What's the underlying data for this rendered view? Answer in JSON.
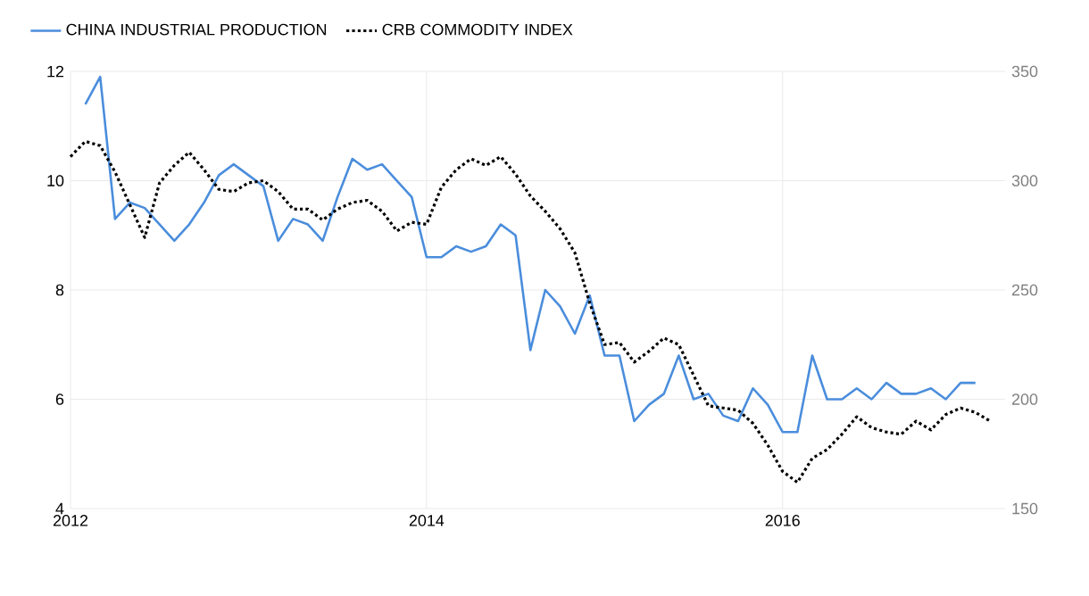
{
  "chart_data": {
    "type": "line",
    "x": [
      "2012-02",
      "2012-03",
      "2012-04",
      "2012-05",
      "2012-06",
      "2012-07",
      "2012-08",
      "2012-09",
      "2012-10",
      "2012-11",
      "2012-12",
      "2013-01",
      "2013-02",
      "2013-03",
      "2013-04",
      "2013-05",
      "2013-06",
      "2013-07",
      "2013-08",
      "2013-09",
      "2013-10",
      "2013-11",
      "2013-12",
      "2014-01",
      "2014-02",
      "2014-03",
      "2014-04",
      "2014-05",
      "2014-06",
      "2014-07",
      "2014-08",
      "2014-09",
      "2014-10",
      "2014-11",
      "2014-12",
      "2015-01",
      "2015-02",
      "2015-03",
      "2015-04",
      "2015-05",
      "2015-06",
      "2015-07",
      "2015-08",
      "2015-09",
      "2015-10",
      "2015-11",
      "2015-12",
      "2016-01",
      "2016-02",
      "2016-03",
      "2016-04",
      "2016-05",
      "2016-06",
      "2016-07",
      "2016-08",
      "2016-09",
      "2016-10",
      "2016-11",
      "2016-12",
      "2017-01",
      "2017-02"
    ],
    "series": [
      {
        "name": "CHINA INDUSTRIAL PRODUCTION",
        "color": "#4a8ddc",
        "line_style": "solid",
        "values": [
          11.4,
          11.9,
          9.3,
          9.6,
          9.5,
          9.2,
          8.9,
          9.2,
          9.6,
          10.1,
          10.3,
          10.1,
          9.9,
          8.9,
          9.3,
          9.2,
          8.9,
          9.7,
          10.4,
          10.2,
          10.3,
          10.0,
          9.7,
          8.6,
          8.6,
          8.8,
          8.7,
          8.8,
          9.2,
          9.0,
          6.9,
          8.0,
          7.7,
          7.2,
          7.9,
          6.8,
          6.8,
          5.6,
          5.9,
          6.1,
          6.8,
          6.0,
          6.1,
          5.7,
          5.6,
          6.2,
          5.9,
          5.4,
          5.4,
          6.8,
          6.0,
          6.0,
          6.2,
          6.0,
          6.3,
          6.1,
          6.1,
          6.2,
          6.0,
          6.3,
          6.3
        ]
      },
      {
        "name": "CRB COMMODITY INDEX",
        "color": "#000000",
        "line_style": "dotted",
        "axis": "y2",
        "x": [
          "2012-01",
          "2012-02",
          "2012-03",
          "2012-04",
          "2012-05",
          "2012-06",
          "2012-07",
          "2012-08",
          "2012-09",
          "2012-10",
          "2012-11",
          "2012-12",
          "2013-01",
          "2013-02",
          "2013-03",
          "2013-04",
          "2013-05",
          "2013-06",
          "2013-07",
          "2013-08",
          "2013-09",
          "2013-10",
          "2013-11",
          "2013-12",
          "2014-01",
          "2014-02",
          "2014-03",
          "2014-04",
          "2014-05",
          "2014-06",
          "2014-07",
          "2014-08",
          "2014-09",
          "2014-10",
          "2014-11",
          "2014-12",
          "2015-01",
          "2015-02",
          "2015-03",
          "2015-04",
          "2015-05",
          "2015-06",
          "2015-07",
          "2015-08",
          "2015-09",
          "2015-10",
          "2015-11",
          "2015-12",
          "2016-01",
          "2016-02",
          "2016-03",
          "2016-04",
          "2016-05",
          "2016-06",
          "2016-07",
          "2016-08",
          "2016-09",
          "2016-10",
          "2016-11",
          "2016-12",
          "2017-01",
          "2017-02",
          "2017-03"
        ],
        "values": [
          311,
          318,
          316,
          304,
          289,
          274,
          299,
          307,
          313,
          305,
          296,
          295,
          299,
          300,
          295,
          287,
          287,
          282,
          287,
          290,
          291,
          286,
          277,
          281,
          280,
          297,
          305,
          310,
          307,
          311,
          303,
          293,
          286,
          278,
          267,
          244,
          225,
          226,
          217,
          222,
          228,
          225,
          211,
          197,
          196,
          195,
          189,
          179,
          167,
          162,
          173,
          177,
          184,
          192,
          187,
          185,
          184,
          190,
          186,
          193,
          196,
          194,
          190
        ]
      }
    ],
    "xlim": [
      "2012-01",
      "2017-04"
    ],
    "xticks": [
      "2012",
      "2014",
      "2016"
    ],
    "ylim": [
      4,
      12
    ],
    "yticks": [
      4,
      6,
      8,
      10,
      12
    ],
    "y2lim": [
      150,
      350
    ],
    "y2ticks": [
      150,
      200,
      250,
      300,
      350
    ],
    "grid": true,
    "legend": "top left"
  }
}
